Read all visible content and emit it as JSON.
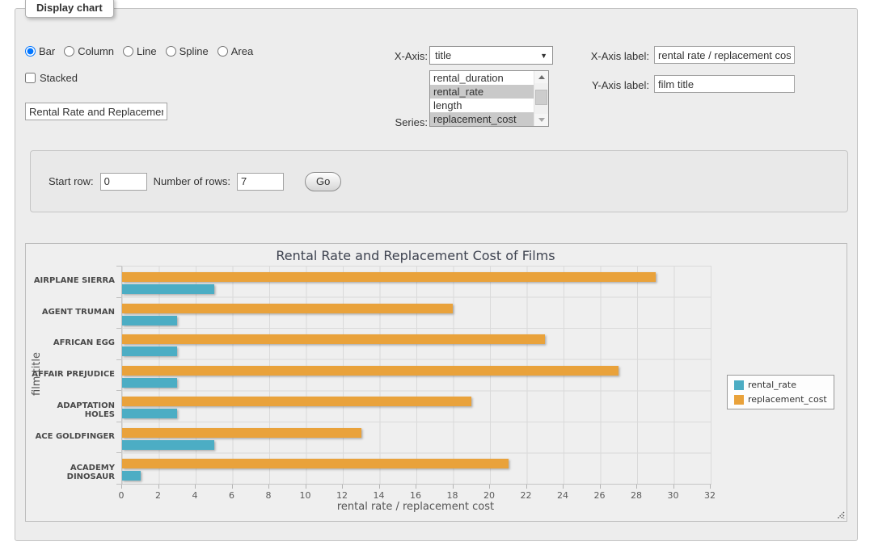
{
  "window": {
    "legend": "Display chart"
  },
  "controls": {
    "chart_types": {
      "items": [
        {
          "label": "Bar",
          "selected": true
        },
        {
          "label": "Column",
          "selected": false
        },
        {
          "label": "Line",
          "selected": false
        },
        {
          "label": "Spline",
          "selected": false
        },
        {
          "label": "Area",
          "selected": false
        }
      ]
    },
    "stacked": {
      "label": "Stacked",
      "checked": false
    },
    "chart_title_input": {
      "value": "Rental Rate and Replacement Cost of Films"
    },
    "x_axis_select": {
      "label": "X-Axis:",
      "selected": "title"
    },
    "series_list": {
      "label": "Series:",
      "options": [
        {
          "label": "rental_duration",
          "selected": false
        },
        {
          "label": "rental_rate",
          "selected": true
        },
        {
          "label": "length",
          "selected": false
        },
        {
          "label": "replacement_cost",
          "selected": true
        }
      ]
    },
    "x_axis_label_input": {
      "label": "X-Axis label:",
      "value": "rental rate / replacement cost"
    },
    "y_axis_label_input": {
      "label": "Y-Axis label:",
      "value": "film title"
    },
    "pagination": {
      "start_row_label": "Start row:",
      "start_row_value": "0",
      "number_of_rows_label": "Number of rows:",
      "number_of_rows_value": "7",
      "go_button": "Go"
    }
  },
  "chart_data": {
    "type": "bar",
    "orientation": "horizontal",
    "title": "Rental Rate and Replacement Cost of Films",
    "categories": [
      "AIRPLANE SIERRA",
      "AGENT TRUMAN",
      "AFRICAN EGG",
      "AFFAIR PREJUDICE",
      "ADAPTATION HOLES",
      "ACE GOLDFINGER",
      "ACADEMY DINOSAUR"
    ],
    "series": [
      {
        "name": "rental_rate",
        "color": "#4CADC4",
        "values": [
          4.99,
          2.99,
          2.99,
          2.99,
          2.99,
          4.99,
          0.99
        ]
      },
      {
        "name": "replacement_cost",
        "color": "#E9A23B",
        "values": [
          28.99,
          17.99,
          22.99,
          26.99,
          18.99,
          12.99,
          20.99
        ]
      }
    ],
    "series_draw_order_top_first": [
      "replacement_cost",
      "rental_rate"
    ],
    "xlabel": "rental rate / replacement cost",
    "ylabel": "film title",
    "xlim": [
      0,
      32
    ],
    "xticks": [
      0,
      2,
      4,
      6,
      8,
      10,
      12,
      14,
      16,
      18,
      20,
      22,
      24,
      26,
      28,
      30,
      32
    ],
    "grid": true,
    "legend_position": "right"
  }
}
